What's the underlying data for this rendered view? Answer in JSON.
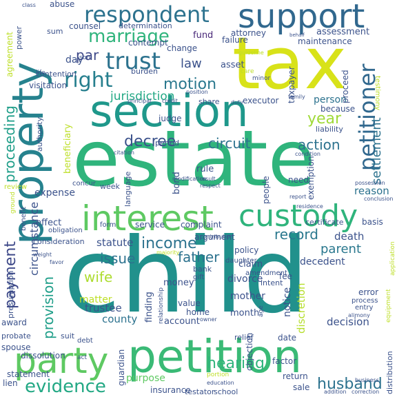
{
  "words": [
    {
      "text": "child",
      "color": "#21918c"
    },
    {
      "text": "estate",
      "color": "#2fb47c"
    },
    {
      "text": "tax",
      "color": "#d8e219"
    },
    {
      "text": "section",
      "color": "#1f988b"
    },
    {
      "text": "petition",
      "color": "#3aba76"
    },
    {
      "text": "property",
      "color": "#26828e"
    },
    {
      "text": "support",
      "color": "#31688e"
    },
    {
      "text": "interest",
      "color": "#5ec962"
    },
    {
      "text": "custody",
      "color": "#2fb47c"
    },
    {
      "text": "party",
      "color": "#5ec962"
    },
    {
      "text": "respondent",
      "color": "#2c728e"
    },
    {
      "text": "petitioner",
      "color": "#31688e"
    },
    {
      "text": "trust",
      "color": "#2c728e"
    },
    {
      "text": "right",
      "color": "#277f8e"
    },
    {
      "text": "marriage",
      "color": "#2fb47c"
    },
    {
      "text": "evidence",
      "color": "#22a884"
    },
    {
      "text": "income",
      "color": "#2c728e"
    },
    {
      "text": "payment",
      "color": "#3e4989"
    },
    {
      "text": "proceeding",
      "color": "#1f9e89"
    },
    {
      "text": "hearing",
      "color": "#2fb47c"
    },
    {
      "text": "husband",
      "color": "#2c728e"
    },
    {
      "text": "motion",
      "color": "#2a788e"
    },
    {
      "text": "settlement",
      "color": "#2c728e"
    },
    {
      "text": "decree",
      "color": "#3b528b"
    },
    {
      "text": "circuit",
      "color": "#2c728e"
    },
    {
      "text": "action",
      "color": "#2c728e"
    },
    {
      "text": "record",
      "color": "#2a788e"
    },
    {
      "text": "father",
      "color": "#2c728e"
    },
    {
      "text": "year",
      "color": "#a0da39"
    },
    {
      "text": "parent",
      "color": "#2a788e"
    },
    {
      "text": "wife",
      "color": "#addc30"
    },
    {
      "text": "provision",
      "color": "#1f9e89"
    },
    {
      "text": "issue",
      "color": "#2c728e"
    },
    {
      "text": "law",
      "color": "#3b528b"
    },
    {
      "text": "jurisdiction",
      "color": "#22a884"
    },
    {
      "text": "par",
      "color": "#3e4989"
    },
    {
      "text": "assessment",
      "color": "#3b528b"
    },
    {
      "text": "day",
      "color": "#3b528b"
    },
    {
      "text": "fund",
      "color": "#482878"
    },
    {
      "text": "attorney",
      "color": "#3b528b"
    },
    {
      "text": "person",
      "color": "#2c728e"
    },
    {
      "text": "statute",
      "color": "#3b528b"
    },
    {
      "text": "death",
      "color": "#3b528b"
    },
    {
      "text": "decedent",
      "color": "#3b528b"
    },
    {
      "text": "reason",
      "color": "#2c728e"
    },
    {
      "text": "circumstance",
      "color": "#3b528b"
    },
    {
      "text": "expense",
      "color": "#3b528b"
    },
    {
      "text": "divorce",
      "color": "#3b528b"
    },
    {
      "text": "mother",
      "color": "#3b528b"
    },
    {
      "text": "money",
      "color": "#3b528b"
    },
    {
      "text": "county",
      "color": "#2c728e"
    },
    {
      "text": "trustee",
      "color": "#3b528b"
    },
    {
      "text": "decision",
      "color": "#3b528b"
    },
    {
      "text": "account",
      "color": "#3b528b"
    },
    {
      "text": "finding",
      "color": "#3b528b"
    },
    {
      "text": "month",
      "color": "#3b528b"
    },
    {
      "text": "home",
      "color": "#3b528b"
    },
    {
      "text": "discretion",
      "color": "#b5de2b"
    },
    {
      "text": "notice",
      "color": "#3b528b"
    },
    {
      "text": "claim",
      "color": "#3b528b"
    },
    {
      "text": "effect",
      "color": "#3b528b"
    },
    {
      "text": "rule",
      "color": "#3b528b"
    },
    {
      "text": "bond",
      "color": "#3b528b"
    },
    {
      "text": "matter",
      "color": "#bddf26"
    },
    {
      "text": "abuse",
      "color": "#3b528b"
    },
    {
      "text": "counsel",
      "color": "#3b528b"
    },
    {
      "text": "determination",
      "color": "#3b528b"
    },
    {
      "text": "failure",
      "color": "#3b528b"
    },
    {
      "text": "maintenance",
      "color": "#3b528b"
    },
    {
      "text": "contempt",
      "color": "#3b528b"
    },
    {
      "text": "change",
      "color": "#3b528b"
    },
    {
      "text": "asset",
      "color": "#3b528b"
    },
    {
      "text": "executor",
      "color": "#3b528b"
    },
    {
      "text": "judge",
      "color": "#3b528b"
    },
    {
      "text": "because",
      "color": "#3b528b"
    },
    {
      "text": "exemption",
      "color": "#3b528b"
    },
    {
      "text": "need",
      "color": "#3b528b"
    },
    {
      "text": "people",
      "color": "#3b528b"
    },
    {
      "text": "language",
      "color": "#3b528b"
    },
    {
      "text": "period",
      "color": "#3b528b"
    },
    {
      "text": "beneficiary",
      "color": "#bddf26"
    },
    {
      "text": "agreement",
      "color": "#bddf26"
    },
    {
      "text": "power",
      "color": "#3b528b"
    },
    {
      "text": "sum",
      "color": "#3b528b"
    },
    {
      "text": "visitation",
      "color": "#3b528b"
    },
    {
      "text": "contention",
      "color": "#3b528b"
    },
    {
      "text": "burden",
      "color": "#3b528b"
    },
    {
      "text": "proceed",
      "color": "#3b528b"
    },
    {
      "text": "taxpayer",
      "color": "#3b528b"
    },
    {
      "text": "share",
      "color": "#3b528b"
    },
    {
      "text": "liability",
      "color": "#3b528b"
    },
    {
      "text": "authority",
      "color": "#3b528b"
    },
    {
      "text": "week",
      "color": "#3b528b"
    },
    {
      "text": "concur",
      "color": "#3b528b"
    },
    {
      "text": "form",
      "color": "#3b528b"
    },
    {
      "text": "service",
      "color": "#3b528b"
    },
    {
      "text": "complaint",
      "color": "#3b528b"
    },
    {
      "text": "certificate",
      "color": "#3b528b"
    },
    {
      "text": "basis",
      "color": "#3b528b"
    },
    {
      "text": "benefit",
      "color": "#3b528b"
    },
    {
      "text": "obligation",
      "color": "#3b528b"
    },
    {
      "text": "consideration",
      "color": "#3b528b"
    },
    {
      "text": "argument",
      "color": "#3b528b"
    },
    {
      "text": "policy",
      "color": "#3b528b"
    },
    {
      "text": "bank",
      "color": "#3b528b"
    },
    {
      "text": "gift",
      "color": "#3b528b"
    },
    {
      "text": "daughter",
      "color": "#3b528b"
    },
    {
      "text": "amendment",
      "color": "#3b528b"
    },
    {
      "text": "fee",
      "color": "#3b528b"
    },
    {
      "text": "intent",
      "color": "#3b528b"
    },
    {
      "text": "error",
      "color": "#3b528b"
    },
    {
      "text": "process",
      "color": "#3b528b"
    },
    {
      "text": "entry",
      "color": "#3b528b"
    },
    {
      "text": "presumption",
      "color": "#3b528b"
    },
    {
      "text": "award",
      "color": "#3b528b"
    },
    {
      "text": "probate",
      "color": "#3b528b"
    },
    {
      "text": "spouse",
      "color": "#3b528b"
    },
    {
      "text": "value",
      "color": "#3b528b"
    },
    {
      "text": "relationship",
      "color": "#3b528b"
    },
    {
      "text": "suit",
      "color": "#3b528b"
    },
    {
      "text": "debt",
      "color": "#3b528b"
    },
    {
      "text": "dissolution",
      "color": "#3b528b"
    },
    {
      "text": "statement",
      "color": "#3b528b"
    },
    {
      "text": "lien",
      "color": "#3b528b"
    },
    {
      "text": "purpose",
      "color": "#5ec962"
    },
    {
      "text": "guardian",
      "color": "#3b528b"
    },
    {
      "text": "insurance",
      "color": "#3b528b"
    },
    {
      "text": "testator",
      "color": "#3b528b"
    },
    {
      "text": "school",
      "color": "#3b528b"
    },
    {
      "text": "relief",
      "color": "#3b528b"
    },
    {
      "text": "objection",
      "color": "#3b528b"
    },
    {
      "text": "date",
      "color": "#3b528b"
    },
    {
      "text": "factor",
      "color": "#3b528b"
    },
    {
      "text": "sale",
      "color": "#3b528b"
    },
    {
      "text": "return",
      "color": "#3b528b"
    },
    {
      "text": "distribution",
      "color": "#3b528b"
    },
    {
      "text": "equipment",
      "color": "#bddf26"
    },
    {
      "text": "application",
      "color": "#bddf26"
    },
    {
      "text": "testimony",
      "color": "#bddf26"
    },
    {
      "text": "review",
      "color": "#bddf26"
    },
    {
      "text": "ground",
      "color": "#bddf26"
    },
    {
      "text": "modification",
      "color": "#3b528b"
    },
    {
      "text": "result",
      "color": "#3b528b"
    },
    {
      "text": "respect",
      "color": "#3b528b"
    },
    {
      "text": "report",
      "color": "#3b528b"
    },
    {
      "text": "residence",
      "color": "#3b528b"
    },
    {
      "text": "conclusion",
      "color": "#3b528b"
    },
    {
      "text": "possession",
      "color": "#3b528b"
    },
    {
      "text": "condition",
      "color": "#3b528b"
    },
    {
      "text": "family",
      "color": "#3b528b"
    },
    {
      "text": "care",
      "color": "#bddf26"
    },
    {
      "text": "minor",
      "color": "#3b528b"
    },
    {
      "text": "guideline",
      "color": "#bddf26"
    },
    {
      "text": "son",
      "color": "#3b528b"
    },
    {
      "text": "life",
      "color": "#3b528b"
    },
    {
      "text": "principal",
      "color": "#3b528b"
    },
    {
      "text": "credit",
      "color": "#3b528b"
    },
    {
      "text": "position",
      "color": "#3b528b"
    },
    {
      "text": "duty",
      "color": "#3b528b"
    },
    {
      "text": "citation",
      "color": "#3b528b"
    },
    {
      "text": "contribution",
      "color": "#3b528b"
    },
    {
      "text": "majority",
      "color": "#bddf26"
    },
    {
      "text": "weight",
      "color": "#3b528b"
    },
    {
      "text": "favor",
      "color": "#3b528b"
    },
    {
      "text": "alimony",
      "color": "#3b528b"
    },
    {
      "text": "education",
      "color": "#3b528b"
    },
    {
      "text": "portion",
      "color": "#bddf26"
    },
    {
      "text": "act",
      "color": "#3b528b"
    },
    {
      "text": "age",
      "color": "#3b528b"
    },
    {
      "text": "owner",
      "color": "#3b528b"
    },
    {
      "text": "class",
      "color": "#3b528b"
    },
    {
      "text": "behalf",
      "color": "#3b528b"
    },
    {
      "text": "business",
      "color": "#3b528b"
    },
    {
      "text": "addition",
      "color": "#3b528b"
    },
    {
      "text": "correction",
      "color": "#3b528b"
    }
  ]
}
